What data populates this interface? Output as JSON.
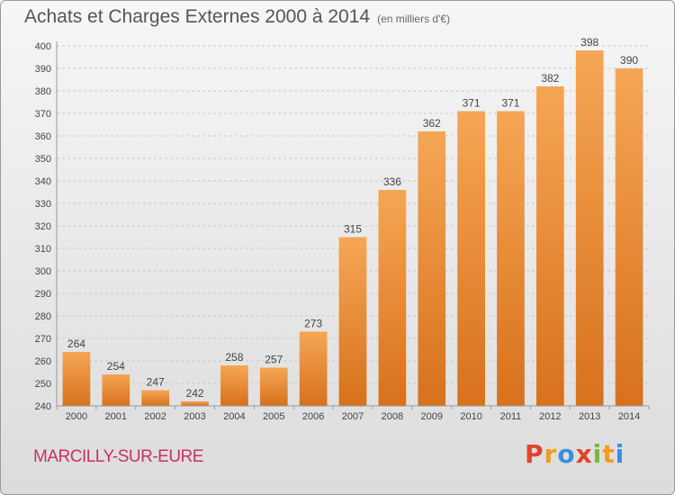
{
  "header": {
    "title": "Achats et Charges Externes 2000 à 2014",
    "subtitle": "(en milliers d'€)"
  },
  "footer": {
    "city": "MARCILLY-SUR-EURE",
    "logo": {
      "letters": [
        "P",
        "r",
        "o",
        "x",
        "i",
        "t",
        "i"
      ],
      "colors": [
        "#e0452c",
        "#f39c1e",
        "#3b8fd6",
        "#e0452c",
        "#78b83a",
        "#f39c1e",
        "#3b8fd6"
      ]
    }
  },
  "chart_data": {
    "type": "bar",
    "categories": [
      "2000",
      "2001",
      "2002",
      "2003",
      "2004",
      "2005",
      "2006",
      "2007",
      "2008",
      "2009",
      "2010",
      "2011",
      "2012",
      "2013",
      "2014"
    ],
    "values": [
      264,
      254,
      247,
      242,
      258,
      257,
      273,
      315,
      336,
      362,
      371,
      371,
      382,
      398,
      390
    ],
    "ylim": [
      240,
      400
    ],
    "yticks": [
      240,
      250,
      260,
      270,
      280,
      290,
      300,
      310,
      320,
      330,
      340,
      350,
      360,
      370,
      380,
      390,
      400
    ],
    "grid": true,
    "bar_color_top": "#f5a655",
    "bar_color_bottom": "#d7711c"
  }
}
